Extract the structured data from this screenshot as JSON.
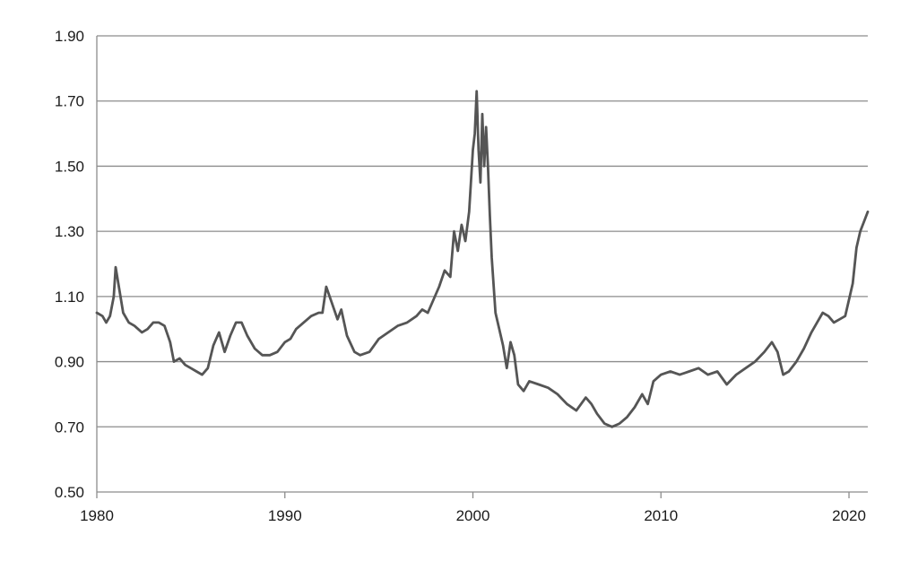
{
  "chart_data": {
    "type": "line",
    "title": "",
    "xlabel": "",
    "ylabel": "",
    "xlim": [
      1980,
      2021
    ],
    "ylim": [
      0.5,
      1.9
    ],
    "x_ticks": [
      1980,
      1990,
      2000,
      2010,
      2020
    ],
    "x_tick_labels": [
      "1980",
      "1990",
      "2000",
      "2010",
      "2020"
    ],
    "y_ticks": [
      0.5,
      0.7,
      0.9,
      1.1,
      1.3,
      1.5,
      1.7,
      1.9
    ],
    "y_tick_labels": [
      "0.50",
      "0.70",
      "0.90",
      "1.10",
      "1.30",
      "1.50",
      "1.70",
      "1.90"
    ],
    "grid": "horizontal",
    "legend": "none",
    "colors": {
      "line": "#555555",
      "grid": "#8c8c8c"
    },
    "series": [
      {
        "x": [
          1980.0,
          1980.3,
          1980.5,
          1980.7,
          1980.9,
          1981.0,
          1981.2,
          1981.4,
          1981.7,
          1982.0,
          1982.4,
          1982.7,
          1983.0,
          1983.3,
          1983.6,
          1983.9,
          1984.1,
          1984.4,
          1984.7,
          1985.0,
          1985.3,
          1985.6,
          1985.9,
          1986.2,
          1986.5,
          1986.8,
          1987.1,
          1987.4,
          1987.7,
          1988.0,
          1988.4,
          1988.8,
          1989.2,
          1989.6,
          1990.0,
          1990.3,
          1990.6,
          1991.0,
          1991.4,
          1991.8,
          1992.0,
          1992.2,
          1992.5,
          1992.8,
          1993.0,
          1993.3,
          1993.7,
          1994.0,
          1994.5,
          1995.0,
          1995.5,
          1996.0,
          1996.5,
          1997.0,
          1997.3,
          1997.6,
          1997.9,
          1998.2,
          1998.5,
          1998.8,
          1999.0,
          1999.2,
          1999.4,
          1999.6,
          1999.8,
          2000.0,
          2000.1,
          2000.2,
          2000.3,
          2000.4,
          2000.5,
          2000.6,
          2000.7,
          2000.8,
          2000.9,
          2001.0,
          2001.2,
          2001.4,
          2001.6,
          2001.8,
          2002.0,
          2002.2,
          2002.4,
          2002.7,
          2003.0,
          2003.5,
          2004.0,
          2004.5,
          2005.0,
          2005.5,
          2006.0,
          2006.3,
          2006.6,
          2007.0,
          2007.4,
          2007.8,
          2008.2,
          2008.6,
          2009.0,
          2009.3,
          2009.6,
          2010.0,
          2010.5,
          2011.0,
          2011.5,
          2012.0,
          2012.5,
          2013.0,
          2013.5,
          2014.0,
          2014.5,
          2015.0,
          2015.5,
          2015.9,
          2016.2,
          2016.5,
          2016.8,
          2017.2,
          2017.6,
          2018.0,
          2018.3,
          2018.6,
          2018.9,
          2019.2,
          2019.5,
          2019.8,
          2020.0,
          2020.2,
          2020.4,
          2020.6,
          2020.8,
          2021.0
        ],
        "y": [
          1.05,
          1.04,
          1.02,
          1.04,
          1.1,
          1.19,
          1.12,
          1.05,
          1.02,
          1.01,
          0.99,
          1.0,
          1.02,
          1.02,
          1.01,
          0.96,
          0.9,
          0.91,
          0.89,
          0.88,
          0.87,
          0.86,
          0.88,
          0.95,
          0.99,
          0.93,
          0.98,
          1.02,
          1.02,
          0.98,
          0.94,
          0.92,
          0.92,
          0.93,
          0.96,
          0.97,
          1.0,
          1.02,
          1.04,
          1.05,
          1.05,
          1.13,
          1.08,
          1.03,
          1.06,
          0.98,
          0.93,
          0.92,
          0.93,
          0.97,
          0.99,
          1.01,
          1.02,
          1.04,
          1.06,
          1.05,
          1.09,
          1.13,
          1.18,
          1.16,
          1.3,
          1.24,
          1.32,
          1.27,
          1.36,
          1.55,
          1.6,
          1.73,
          1.55,
          1.45,
          1.66,
          1.5,
          1.62,
          1.5,
          1.35,
          1.22,
          1.05,
          1.0,
          0.95,
          0.88,
          0.96,
          0.92,
          0.83,
          0.81,
          0.84,
          0.83,
          0.82,
          0.8,
          0.77,
          0.75,
          0.79,
          0.77,
          0.74,
          0.71,
          0.7,
          0.71,
          0.73,
          0.76,
          0.8,
          0.77,
          0.84,
          0.86,
          0.87,
          0.86,
          0.87,
          0.88,
          0.86,
          0.87,
          0.83,
          0.86,
          0.88,
          0.9,
          0.93,
          0.96,
          0.93,
          0.86,
          0.87,
          0.9,
          0.94,
          0.99,
          1.02,
          1.05,
          1.04,
          1.02,
          1.03,
          1.04,
          1.09,
          1.14,
          1.25,
          1.3,
          1.33,
          1.36
        ]
      }
    ]
  }
}
